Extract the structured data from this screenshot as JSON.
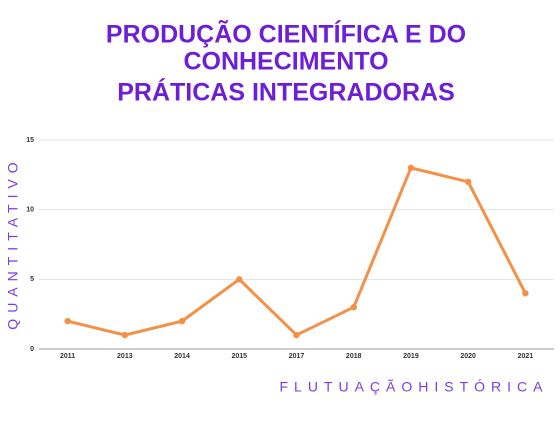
{
  "chart_data": {
    "type": "line",
    "title": [
      "PRODUÇÃO CIENTÍFICA E DO",
      "CONHECIMENTO",
      "PRÁTICAS INTEGRADORAS"
    ],
    "y_label": "QUANTITATIVO",
    "x_label": "FLUTUAÇÃOHISTÓRICA",
    "categories": [
      "2011",
      "2013",
      "2014",
      "2015",
      "2017",
      "2018",
      "2019",
      "2020",
      "2021"
    ],
    "values": [
      2,
      1,
      2,
      5,
      1,
      3,
      13,
      12,
      4
    ],
    "color": "#f39149",
    "ylim": [
      0,
      15
    ],
    "yticks": [
      0,
      5,
      10,
      15
    ],
    "grid": true
  }
}
